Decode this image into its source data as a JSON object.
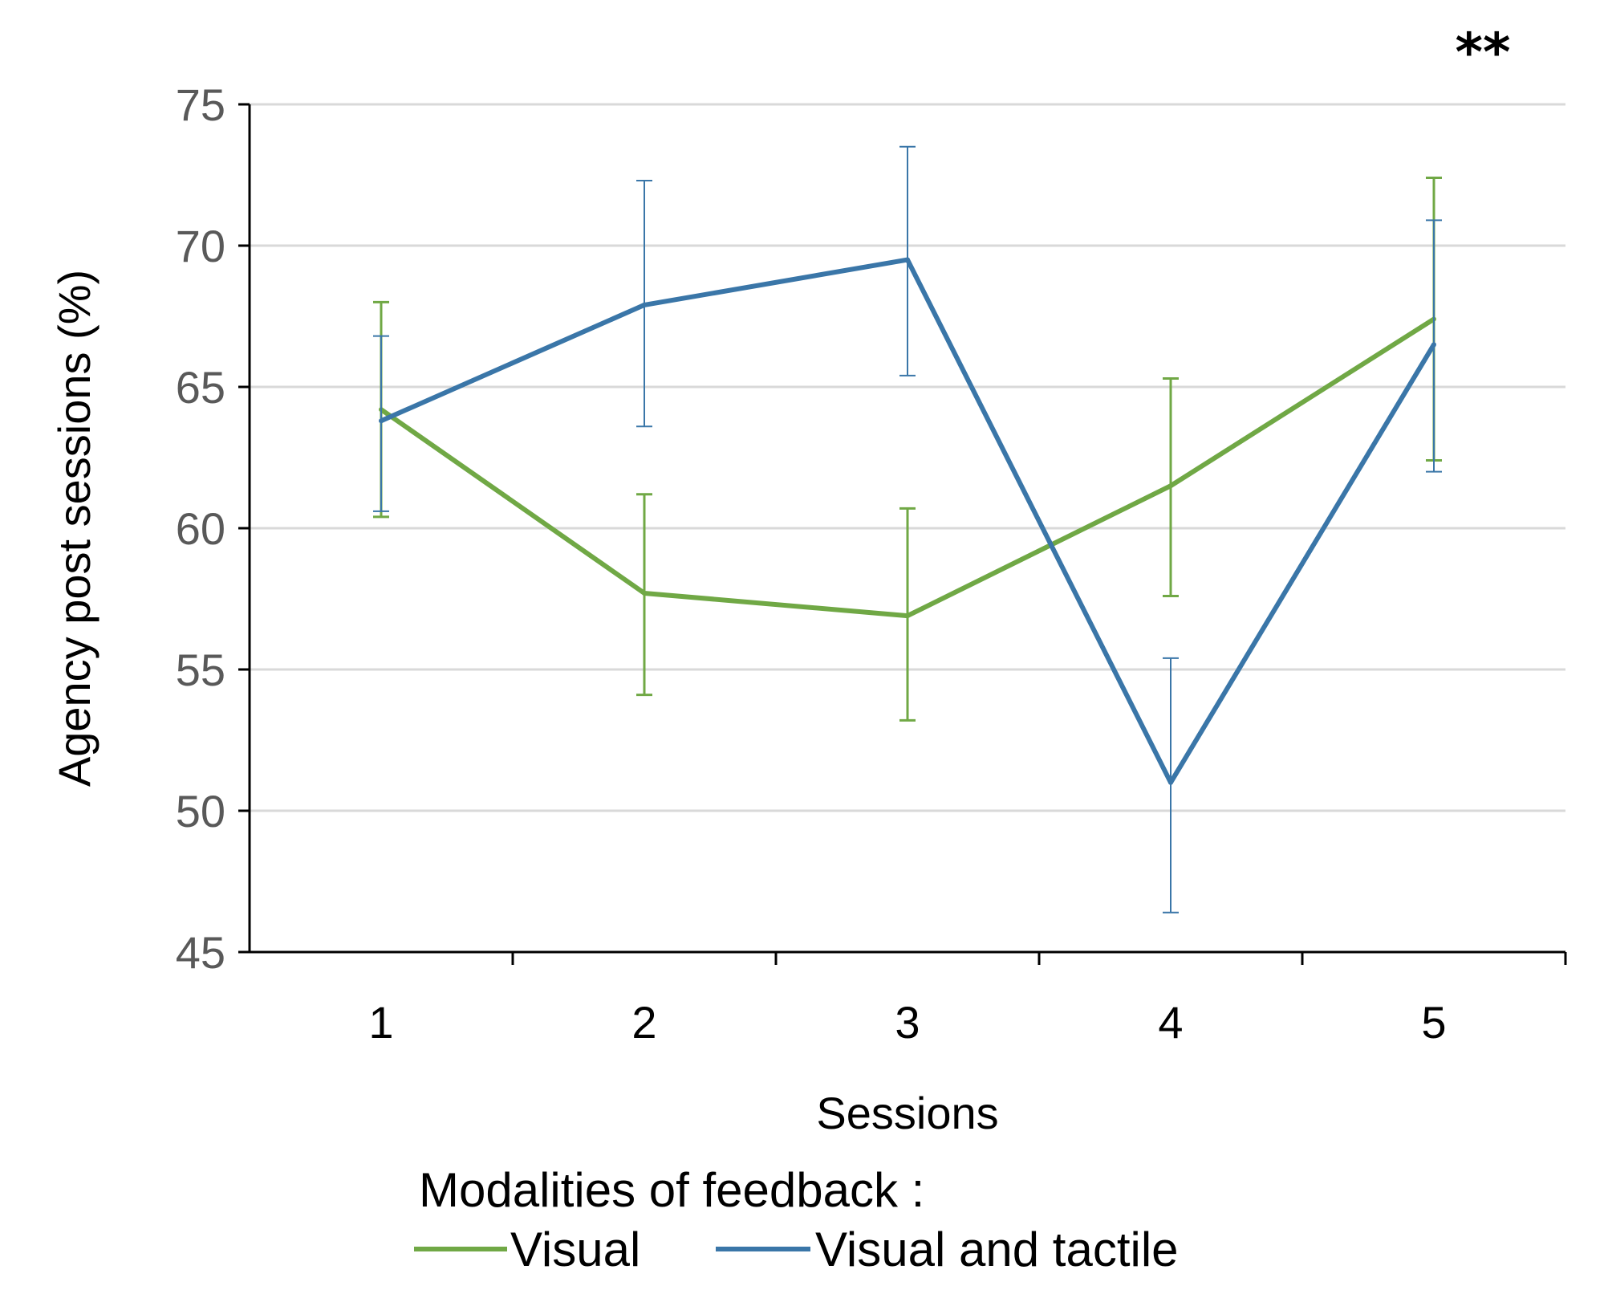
{
  "chart_data": {
    "type": "line",
    "x": [
      1,
      2,
      3,
      4,
      5
    ],
    "xlabel": "Sessions",
    "ylabel": "Agency post sessions (%)",
    "ylim": [
      45,
      75
    ],
    "yticks": [
      45,
      50,
      55,
      60,
      65,
      70,
      75
    ],
    "grid": true,
    "significance_mark": "**",
    "legend_title": "Modalities of feedback :",
    "legend_position": "bottom",
    "series": [
      {
        "name": "Visual",
        "color": "#70a845",
        "values": [
          64.2,
          57.7,
          56.9,
          61.5,
          67.4
        ],
        "err_low": [
          60.4,
          54.1,
          53.2,
          57.6,
          62.4
        ],
        "err_high": [
          68.0,
          61.2,
          60.7,
          65.3,
          72.4
        ]
      },
      {
        "name": "Visual and tactile",
        "color": "#3a76a8",
        "values": [
          63.8,
          67.9,
          69.5,
          51.0,
          66.5
        ],
        "err_low": [
          60.6,
          63.6,
          65.4,
          46.4,
          62.0
        ],
        "err_high": [
          66.8,
          72.3,
          73.5,
          55.4,
          70.9
        ]
      }
    ]
  }
}
